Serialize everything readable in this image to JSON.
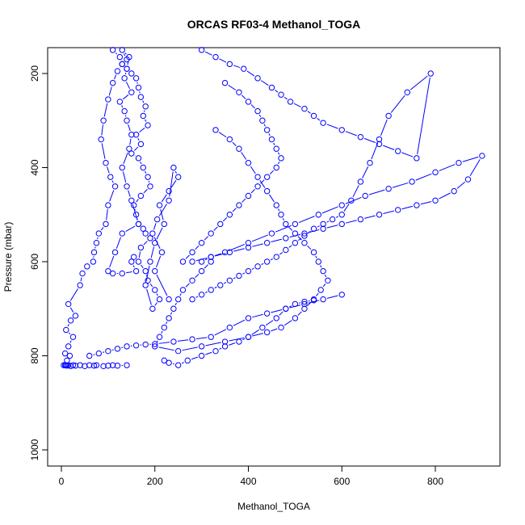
{
  "chart_data": {
    "type": "scatter",
    "title": "ORCAS RF03-4 Methanol_TOGA",
    "xlabel": "Methanol_TOGA",
    "ylabel": "Pressure (mbar)",
    "xlim": [
      -30,
      940
    ],
    "ylim": [
      1030,
      150
    ],
    "y_reversed": true,
    "grid": false,
    "legend": "none",
    "connected": true,
    "color": "#0000ff",
    "x_ticks": [
      "0",
      "200",
      "400",
      "600",
      "800"
    ],
    "y_ticks": [
      "200",
      "400",
      "600",
      "800",
      "1000"
    ],
    "series": [
      {
        "x": [
          5,
          8,
          12,
          15,
          20,
          25,
          30,
          40,
          50,
          60,
          70,
          75,
          90,
          100,
          110,
          120,
          140
        ],
        "y": [
          820,
          820,
          821,
          820,
          822,
          820,
          821,
          820,
          822,
          820,
          821,
          820,
          822,
          821,
          820,
          821,
          820
        ]
      },
      {
        "x": [
          10,
          12,
          18,
          8,
          15,
          25,
          10,
          20,
          30,
          15,
          40,
          45,
          55,
          68,
          70,
          75,
          80,
          95,
          100,
          115,
          105,
          95,
          85,
          90,
          100,
          110,
          120,
          130,
          140,
          130,
          145,
          140,
          135,
          150,
          125,
          135,
          140,
          150,
          145,
          130,
          140,
          150,
          165,
          130,
          115,
          100,
          110,
          130,
          160,
          150,
          155
        ],
        "y": [
          820,
          810,
          800,
          795,
          780,
          760,
          745,
          725,
          715,
          690,
          650,
          625,
          610,
          600,
          580,
          560,
          540,
          520,
          480,
          440,
          420,
          390,
          340,
          300,
          255,
          220,
          195,
          180,
          170,
          150,
          165,
          190,
          210,
          240,
          260,
          280,
          300,
          330,
          360,
          400,
          440,
          470,
          520,
          540,
          580,
          620,
          625,
          625,
          620,
          600,
          590
        ]
      },
      {
        "x": [
          110,
          125,
          130,
          140,
          150,
          160,
          165,
          170,
          180,
          175,
          185,
          160,
          170,
          150,
          165,
          175,
          185,
          190,
          170,
          155,
          160,
          165,
          175,
          180,
          190,
          170,
          165,
          180,
          185,
          200,
          210,
          195,
          180,
          190,
          200,
          220,
          210,
          230,
          250,
          240,
          230,
          205,
          195,
          215,
          200,
          230
        ],
        "y": [
          150,
          165,
          180,
          190,
          200,
          210,
          230,
          250,
          270,
          290,
          310,
          330,
          350,
          370,
          380,
          400,
          420,
          440,
          460,
          480,
          500,
          520,
          530,
          540,
          550,
          570,
          600,
          620,
          640,
          660,
          680,
          700,
          650,
          600,
          560,
          520,
          480,
          450,
          420,
          400,
          470,
          510,
          540,
          580,
          620,
          680
        ]
      },
      {
        "x": [
          300,
          330,
          360,
          390,
          420,
          450,
          470,
          490,
          520,
          540,
          560,
          600,
          640,
          680,
          720,
          760,
          790,
          740,
          700,
          680,
          660,
          640,
          620,
          600,
          580,
          560,
          540,
          520,
          500,
          480,
          460,
          440,
          420,
          400,
          380,
          360,
          340,
          320,
          300,
          280
        ],
        "y": [
          150,
          165,
          180,
          190,
          210,
          230,
          245,
          260,
          275,
          290,
          305,
          320,
          335,
          350,
          365,
          380,
          200,
          240,
          290,
          340,
          390,
          430,
          470,
          500,
          510,
          520,
          530,
          545,
          560,
          575,
          590,
          600,
          610,
          620,
          630,
          640,
          650,
          660,
          670,
          680
        ]
      },
      {
        "x": [
          280,
          320,
          360,
          400,
          440,
          480,
          520,
          560,
          600,
          640,
          680,
          720,
          760,
          800,
          840,
          870,
          900,
          850,
          800,
          750,
          700,
          650,
          600,
          550,
          500,
          450,
          400,
          350,
          320,
          300
        ],
        "y": [
          600,
          590,
          580,
          570,
          560,
          550,
          540,
          530,
          520,
          510,
          500,
          490,
          480,
          470,
          450,
          425,
          375,
          390,
          410,
          430,
          445,
          460,
          480,
          500,
          520,
          540,
          560,
          580,
          590,
          600
        ]
      },
      {
        "x": [
          330,
          360,
          380,
          400,
          420,
          440,
          460,
          470,
          480,
          500,
          520,
          540,
          550,
          560,
          570,
          555,
          540,
          520,
          500,
          470,
          440,
          400,
          380,
          350,
          330,
          300,
          270,
          250,
          230,
          220
        ],
        "y": [
          320,
          340,
          360,
          390,
          420,
          450,
          480,
          500,
          520,
          540,
          560,
          580,
          600,
          620,
          640,
          660,
          680,
          700,
          720,
          740,
          750,
          760,
          770,
          780,
          790,
          800,
          810,
          820,
          815,
          810
        ]
      },
      {
        "x": [
          350,
          380,
          400,
          420,
          430,
          440,
          450,
          460,
          470,
          460,
          440,
          420,
          400,
          380,
          360,
          340,
          320,
          300,
          280,
          260
        ],
        "y": [
          220,
          240,
          260,
          280,
          300,
          320,
          340,
          360,
          380,
          400,
          420,
          440,
          460,
          480,
          500,
          520,
          540,
          560,
          580,
          600
        ]
      },
      {
        "x": [
          320,
          300,
          280,
          260,
          250,
          240,
          230,
          220,
          210,
          200,
          250,
          300,
          350,
          400,
          430,
          460,
          480,
          500,
          520,
          540
        ],
        "y": [
          600,
          620,
          640,
          660,
          680,
          700,
          720,
          740,
          760,
          780,
          790,
          780,
          770,
          760,
          740,
          720,
          700,
          690,
          685,
          682
        ]
      },
      {
        "x": [
          60,
          80,
          100,
          120,
          140,
          160,
          180,
          200,
          240,
          280,
          320,
          360,
          400,
          440,
          480,
          520,
          560,
          600
        ],
        "y": [
          800,
          795,
          790,
          785,
          780,
          778,
          776,
          775,
          770,
          765,
          760,
          740,
          720,
          710,
          700,
          690,
          680,
          670
        ]
      }
    ]
  }
}
